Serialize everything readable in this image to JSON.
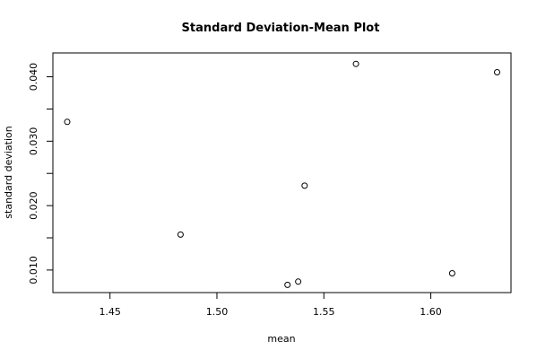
{
  "chart_data": {
    "type": "scatter",
    "title": "Standard Deviation-Mean Plot",
    "xlabel": "mean",
    "ylabel": "standard deviation",
    "xlim": [
      1.4233,
      1.6375
    ],
    "ylim": [
      0.0065,
      0.0437
    ],
    "x_ticks": [
      1.45,
      1.5,
      1.55,
      1.6
    ],
    "x_tick_labels": [
      "1.45",
      "1.50",
      "1.55",
      "1.60"
    ],
    "y_ticks": [
      0.01,
      0.015,
      0.02,
      0.025,
      0.03,
      0.035,
      0.04
    ],
    "y_tick_labels": [
      "0.010",
      "",
      "0.020",
      "",
      "0.030",
      "",
      "0.040"
    ],
    "grid": false,
    "points": [
      {
        "x": 1.43,
        "y": 0.033
      },
      {
        "x": 1.483,
        "y": 0.0155
      },
      {
        "x": 1.533,
        "y": 0.0077
      },
      {
        "x": 1.538,
        "y": 0.0082
      },
      {
        "x": 1.541,
        "y": 0.0231
      },
      {
        "x": 1.565,
        "y": 0.042
      },
      {
        "x": 1.61,
        "y": 0.0095
      },
      {
        "x": 1.631,
        "y": 0.0407
      }
    ]
  }
}
